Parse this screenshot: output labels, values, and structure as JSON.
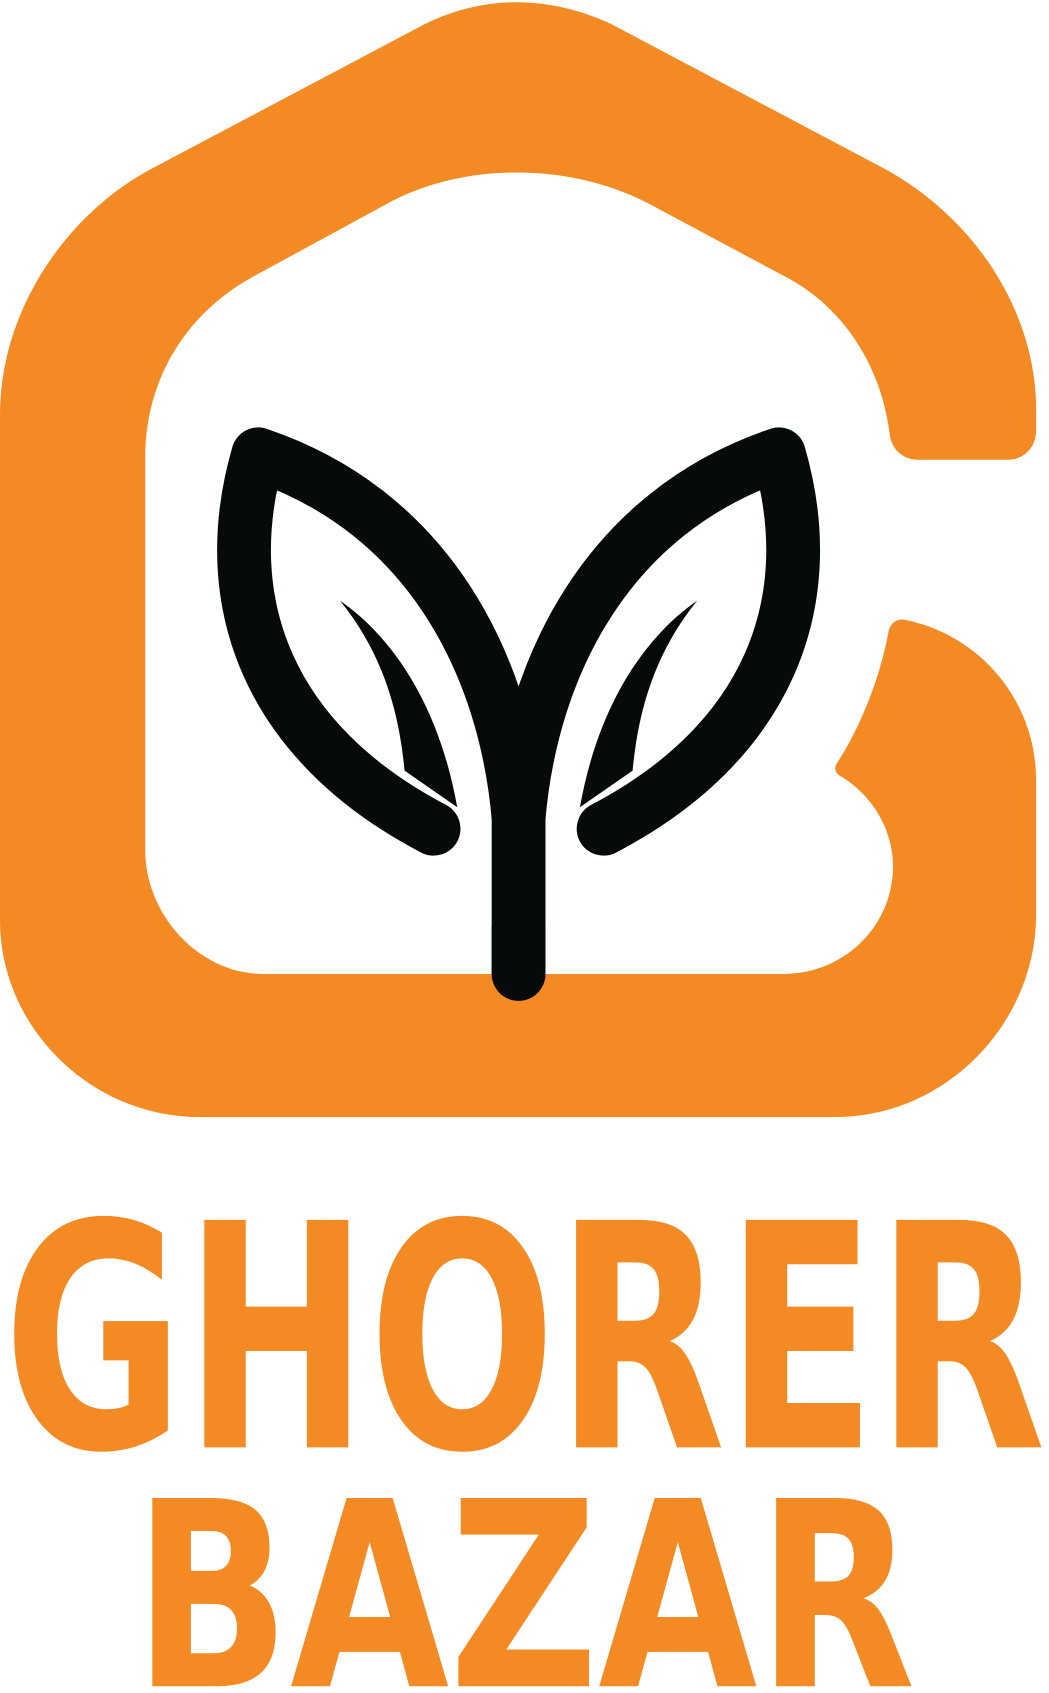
{
  "logo": {
    "line1": "GHORER",
    "line2": "BAZAR"
  }
}
